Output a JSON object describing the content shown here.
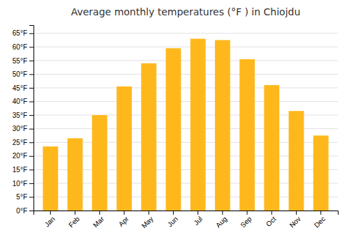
{
  "chart_data": {
    "type": "bar",
    "title": "Average monthly temperatures (°F ) in Chiojdu",
    "categories": [
      "Jan",
      "Feb",
      "Mar",
      "Apr",
      "May",
      "Jun",
      "Jul",
      "Aug",
      "Sep",
      "Oct",
      "Nov",
      "Dec"
    ],
    "values": [
      23.5,
      26.5,
      35,
      45.5,
      54,
      59.5,
      63,
      62.5,
      55.5,
      46,
      36.5,
      27.5
    ],
    "color": "#FFB81C",
    "ylim": [
      0,
      68
    ],
    "yticks": [
      {
        "value": 0,
        "label": "0°F"
      },
      {
        "value": 5,
        "label": "5°F"
      },
      {
        "value": 10,
        "label": "10°F"
      },
      {
        "value": 15,
        "label": "15°F"
      },
      {
        "value": 20,
        "label": "20°F"
      },
      {
        "value": 25,
        "label": "25°F"
      },
      {
        "value": 30,
        "label": "30°F"
      },
      {
        "value": 35,
        "label": "35°F"
      },
      {
        "value": 40,
        "label": "40°F"
      },
      {
        "value": 45,
        "label": "45°F"
      },
      {
        "value": 50,
        "label": "50°F"
      },
      {
        "value": 55,
        "label": "55°F"
      },
      {
        "value": 60,
        "label": "60°F"
      },
      {
        "value": 65,
        "label": "65°F"
      }
    ],
    "grid": true
  }
}
